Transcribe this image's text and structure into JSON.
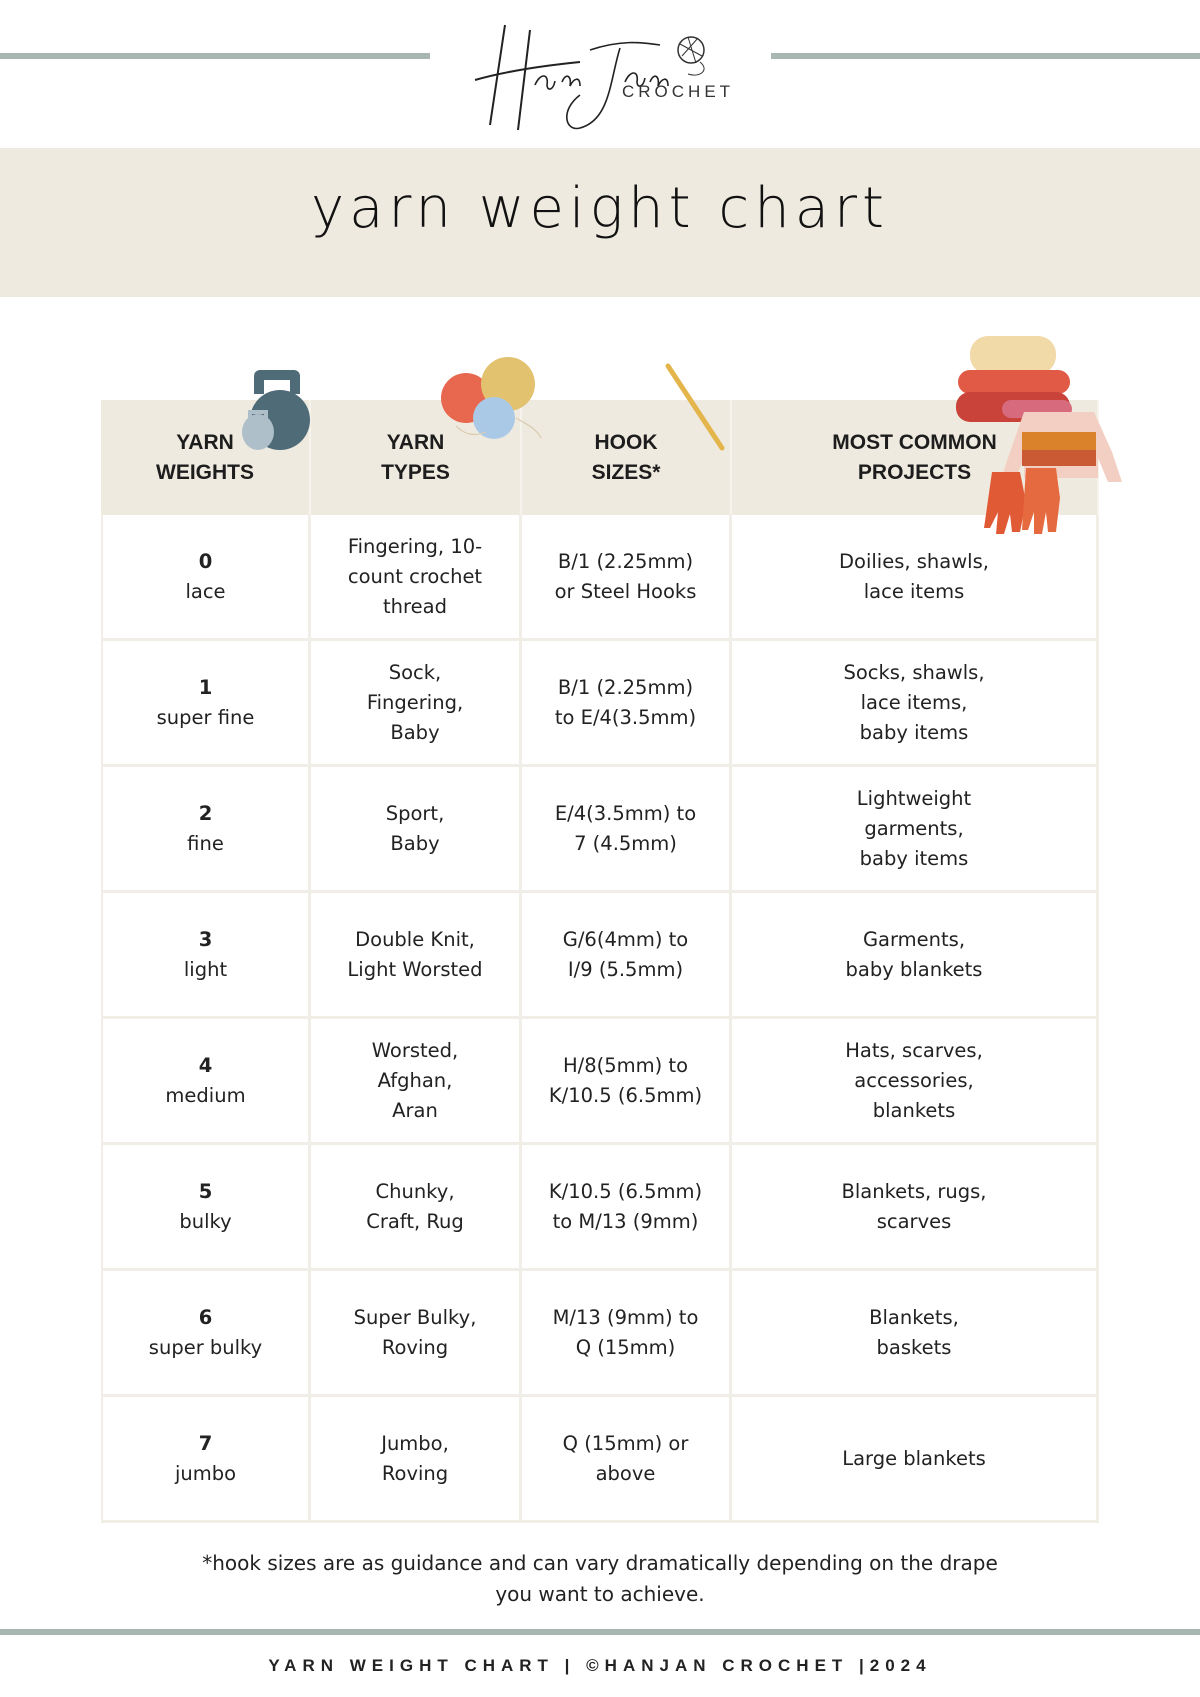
{
  "logo": {
    "script": "HanJan",
    "sub": "CROCHET"
  },
  "title": "yarn weight chart",
  "table": {
    "headers": [
      "YARN\nWEIGHTS",
      "YARN\nTYPES",
      "HOOK\nSIZES*",
      "MOST COMMON\nPROJECTS"
    ],
    "rows": [
      {
        "num": "0",
        "name": "lace",
        "types": "Fingering, 10-\ncount crochet\nthread",
        "hook": "B/1 (2.25mm)\nor Steel Hooks",
        "projects": "Doilies, shawls,\nlace items"
      },
      {
        "num": "1",
        "name": "super fine",
        "types": "Sock,\nFingering,\nBaby",
        "hook": "B/1 (2.25mm)\nto E/4(3.5mm)",
        "projects": "Socks, shawls,\nlace items,\nbaby items"
      },
      {
        "num": "2",
        "name": "fine",
        "types": "Sport,\nBaby",
        "hook": "E/4(3.5mm) to\n7 (4.5mm)",
        "projects": "Lightweight\ngarments,\nbaby items"
      },
      {
        "num": "3",
        "name": "light",
        "types": "Double Knit,\nLight Worsted",
        "hook": "G/6(4mm) to\nI/9 (5.5mm)",
        "projects": "Garments,\nbaby blankets"
      },
      {
        "num": "4",
        "name": "medium",
        "types": "Worsted,\nAfghan,\nAran",
        "hook": "H/8(5mm) to\nK/10.5 (6.5mm)",
        "projects": "Hats, scarves,\naccessories,\nblankets"
      },
      {
        "num": "5",
        "name": "bulky",
        "types": "Chunky,\nCraft, Rug",
        "hook": "K/10.5 (6.5mm)\nto M/13 (9mm)",
        "projects": "Blankets, rugs,\nscarves"
      },
      {
        "num": "6",
        "name": "super bulky",
        "types": "Super Bulky,\nRoving",
        "hook": "M/13 (9mm) to\nQ (15mm)",
        "projects": "Blankets,\nbaskets"
      },
      {
        "num": "7",
        "name": "jumbo",
        "types": "Jumbo,\nRoving",
        "hook": "Q (15mm) or\nabove",
        "projects": "Large blankets"
      }
    ]
  },
  "footnote": "*hook sizes are as guidance and can vary dramatically depending on the drape\nyou want to achieve.",
  "footer": "YARN WEIGHT CHART |  ©HANJAN CROCHET |2024",
  "colors": {
    "band": "#efeadf",
    "rule": "#aab6b4",
    "kettlebell": "#4f6b78",
    "yarn_red": "#e8674f",
    "yarn_gold": "#e3c26f",
    "yarn_blue": "#a9c9e6",
    "hook": "#e3b54a",
    "sweater": "#e66a3f"
  },
  "icons": [
    "kettlebell-icon",
    "yarn-balls-icon",
    "crochet-hook-icon",
    "blankets-sweater-gloves-icon",
    "yarn-ball-logo-icon"
  ]
}
